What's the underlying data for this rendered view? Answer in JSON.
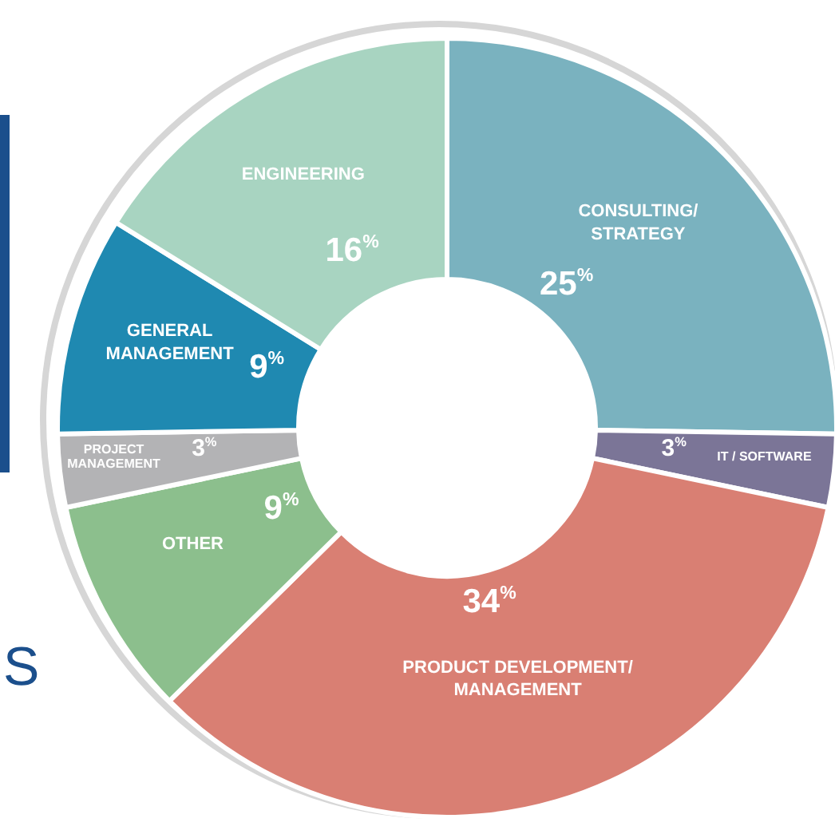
{
  "chart_data": {
    "type": "donut",
    "categories": [
      "CONSULTING/STRATEGY",
      "IT / SOFTWARE",
      "PRODUCT DEVELOPMENT/MANAGEMENT",
      "OTHER",
      "PROJECT MANAGEMENT",
      "GENERAL MANAGEMENT",
      "ENGINEERING"
    ],
    "values": [
      25,
      3,
      34,
      9,
      3,
      9,
      16
    ],
    "value_labels": [
      "25$^{%}$",
      "3$^{%}$",
      "34$^{%}$",
      "9$^{%}$",
      "3$^{%}$",
      "9$^{%}$",
      "16$^{%}$"
    ],
    "colors": [
      "#7ab2bf",
      "#7b7597",
      "#d97f73",
      "#8cbf8d",
      "#b3b3b5",
      "#1f89b1",
      "#a8d4c1"
    ],
    "annotations": [
      "S"
    ]
  }
}
